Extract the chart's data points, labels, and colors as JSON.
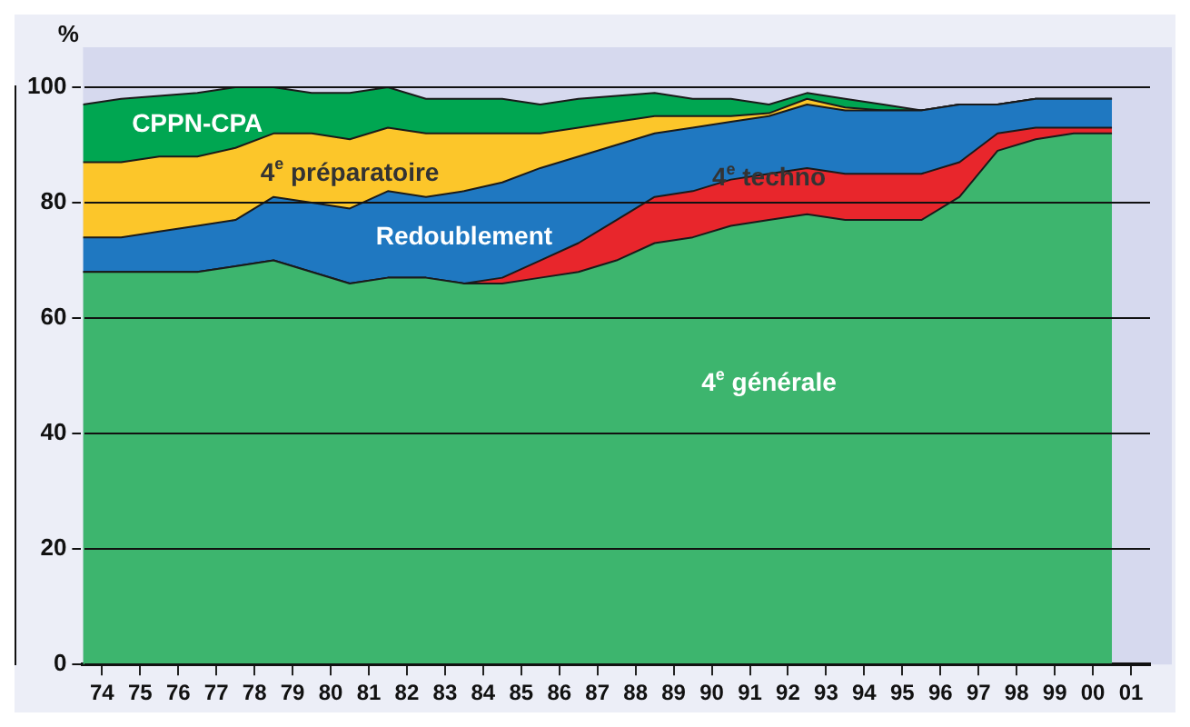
{
  "chart_data": {
    "type": "area",
    "stacked": true,
    "ylabel": "%",
    "x": [
      1973.5,
      1974.5,
      1975.5,
      1976.5,
      1977.5,
      1978.5,
      1979.5,
      1980.5,
      1981.5,
      1982.5,
      1983.5,
      1984.5,
      1985.5,
      1986.5,
      1987.5,
      1988.5,
      1989.5,
      1990.5,
      1991.5,
      1992.5,
      1993.5,
      1994.5,
      1995.5,
      1996.5,
      1997.5,
      1998.5,
      1999.5,
      2000.5
    ],
    "series": [
      {
        "name": "4$^{e}$ générale",
        "color": "#3db56e",
        "values": [
          68,
          68,
          68,
          68,
          69,
          70,
          68,
          66,
          67,
          67,
          66,
          66,
          67,
          68,
          70,
          73,
          74,
          76,
          77,
          78,
          77,
          77,
          77,
          81,
          89,
          91,
          92,
          92
        ]
      },
      {
        "name": "4$^{e}$ techno",
        "color": "#e8262c",
        "values": [
          0,
          0,
          0,
          0,
          0,
          0,
          0,
          0,
          0,
          0,
          0,
          1,
          3,
          5,
          7,
          8,
          8,
          8,
          8,
          8,
          8,
          8,
          8,
          6,
          3,
          2,
          1,
          1
        ]
      },
      {
        "name": "Redoublement",
        "color": "#1f78c1",
        "values": [
          6,
          6,
          7,
          8,
          8,
          11,
          12,
          13,
          15,
          14,
          16,
          16.5,
          16,
          15,
          13,
          11,
          11,
          10,
          10,
          11,
          11,
          11,
          11,
          10,
          5,
          5,
          5,
          5
        ]
      },
      {
        "name": "4$^{e}$ préparatoire",
        "color": "#fcc62a",
        "values": [
          13,
          13,
          13,
          12,
          12.5,
          11,
          12,
          12,
          11,
          11,
          10,
          8.5,
          6,
          5,
          4,
          3,
          2,
          1,
          0.5,
          1,
          0.5,
          0,
          0,
          0,
          0,
          0,
          0,
          0
        ]
      },
      {
        "name": "CPPN-CPA",
        "color": "#00a651",
        "values": [
          10,
          11,
          10.5,
          11,
          10.5,
          8,
          7,
          8,
          7,
          6,
          6,
          6,
          5,
          5,
          4.5,
          4,
          3,
          3,
          1.5,
          1,
          1.5,
          1,
          0,
          0,
          0,
          0,
          0,
          0
        ]
      }
    ],
    "xlim": [
      1973.5,
      2001.5
    ],
    "xticks": [
      {
        "value": 1974,
        "label": "74"
      },
      {
        "value": 1975,
        "label": "75"
      },
      {
        "value": 1976,
        "label": "76"
      },
      {
        "value": 1977,
        "label": "77"
      },
      {
        "value": 1978,
        "label": "78"
      },
      {
        "value": 1979,
        "label": "79"
      },
      {
        "value": 1980,
        "label": "80"
      },
      {
        "value": 1981,
        "label": "81"
      },
      {
        "value": 1982,
        "label": "82"
      },
      {
        "value": 1983,
        "label": "83"
      },
      {
        "value": 1984,
        "label": "84"
      },
      {
        "value": 1985,
        "label": "85"
      },
      {
        "value": 1986,
        "label": "86"
      },
      {
        "value": 1987,
        "label": "87"
      },
      {
        "value": 1988,
        "label": "88"
      },
      {
        "value": 1989,
        "label": "89"
      },
      {
        "value": 1990,
        "label": "90"
      },
      {
        "value": 1991,
        "label": "91"
      },
      {
        "value": 1992,
        "label": "92"
      },
      {
        "value": 1993,
        "label": "93"
      },
      {
        "value": 1994,
        "label": "94"
      },
      {
        "value": 1995,
        "label": "95"
      },
      {
        "value": 1996,
        "label": "96"
      },
      {
        "value": 1997,
        "label": "97"
      },
      {
        "value": 1998,
        "label": "98"
      },
      {
        "value": 1999,
        "label": "99"
      },
      {
        "value": 2000,
        "label": "00"
      },
      {
        "value": 2001,
        "label": "01"
      }
    ],
    "ylim": [
      0,
      100
    ],
    "yticks": [
      0,
      20,
      40,
      60,
      80,
      100
    ],
    "grid": "y",
    "legend": false
  }
}
